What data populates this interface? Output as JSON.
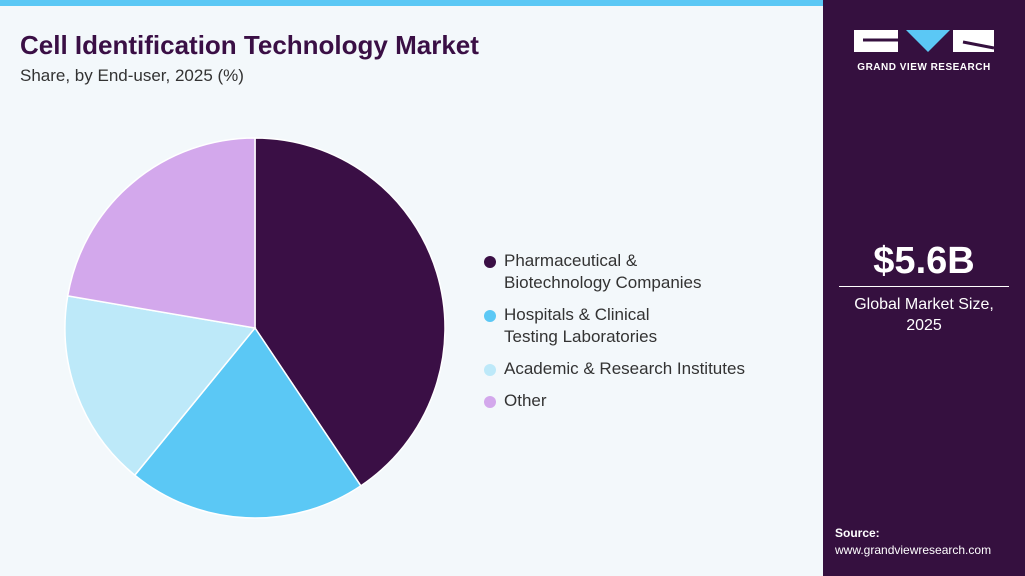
{
  "chart_data": {
    "type": "pie",
    "title": "Cell Identification Technology Market",
    "subtitle": "Share, by End-user, 2025 (%)",
    "categories": [
      "Pharmaceutical &\nBiotechnology Companies",
      "Hospitals & Clinical\nTesting Laboratories",
      "Academic & Research Institutes",
      "Other"
    ],
    "values": [
      40.6,
      20.3,
      16.8,
      22.3
    ],
    "colors": [
      "#3a0f45",
      "#5bc8f5",
      "#bde9f9",
      "#d3a8ec"
    ]
  },
  "brand": {
    "logo": "GRAND VIEW RESEARCH"
  },
  "panel": {
    "market_size": "$5.6B",
    "market_label": "Global Market Size, 2025",
    "source_label": "Source:",
    "source_url": "www.grandviewresearch.com"
  }
}
